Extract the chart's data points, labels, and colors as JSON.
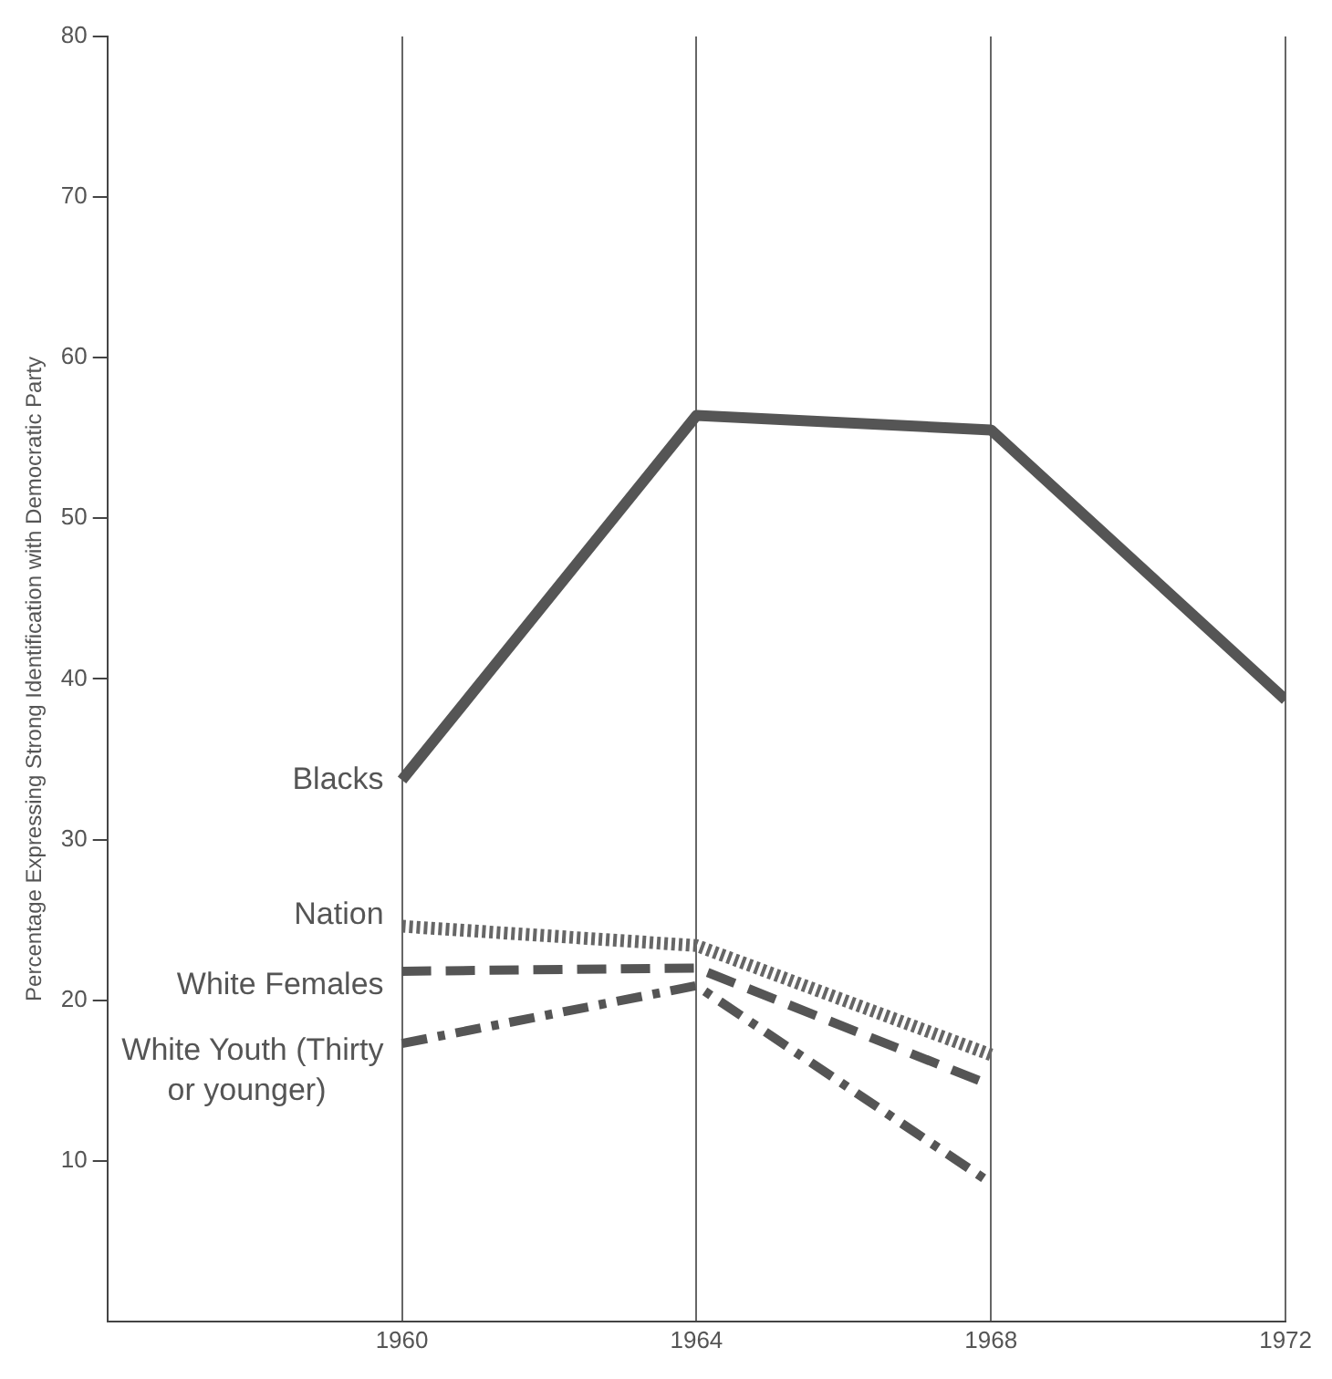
{
  "chart_data": {
    "type": "line",
    "ylabel": "Percentage Expressing Strong Identification with Democratic Party",
    "x": [
      1960,
      1964,
      1968,
      1972
    ],
    "series": [
      {
        "name": "Blacks",
        "color": "#555555",
        "line_style": "solid",
        "values": [
          33.7,
          56.4,
          55.5,
          38.7
        ]
      },
      {
        "name": "Nation",
        "color": "#666666",
        "line_style": "dotted",
        "values": [
          24.6,
          23.4,
          16.6,
          null
        ]
      },
      {
        "name": "White Females",
        "color": "#555555",
        "line_style": "dashed",
        "values": [
          21.8,
          22.0,
          14.7,
          null
        ]
      },
      {
        "name": "White Youth (Thirty or younger)",
        "color": "#555555",
        "line_style": "dashdot",
        "values": [
          17.3,
          20.9,
          8.6,
          null
        ]
      }
    ],
    "xlim": [
      1956,
      1972
    ],
    "xticks": [
      1960,
      1964,
      1968,
      1972
    ],
    "ylim": [
      0,
      80
    ],
    "yticks": [
      10,
      20,
      30,
      40,
      50,
      60,
      70,
      80
    ],
    "grid": "x",
    "legend": false,
    "marker": "none"
  }
}
